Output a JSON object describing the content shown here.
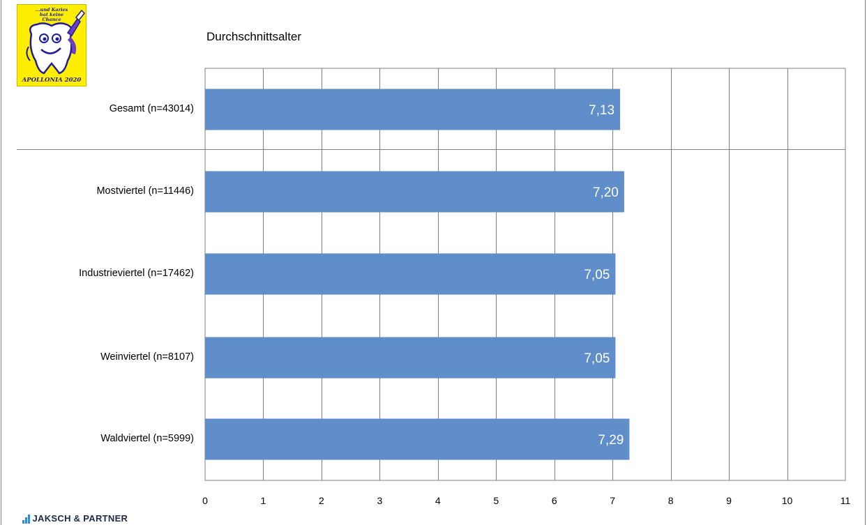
{
  "logo": {
    "top_text": "...und Karies hat keine Chance",
    "bottom_text": "APOLLONIA 2020"
  },
  "brand": {
    "name": "JAKSCH & PARTNER"
  },
  "colors": {
    "bar": "#5f8ecb",
    "grid": "#7f7f7f",
    "value_label": "#ffffff"
  },
  "chart_data": {
    "type": "bar",
    "orientation": "horizontal",
    "title": "Durchschnittsalter",
    "categories": [
      "Gesamt (n=43014)",
      "Mostviertel (n=11446)",
      "Industrieviertel (n=17462)",
      "Weinviertel (n=8107)",
      "Waldviertel (n=5999)"
    ],
    "values": [
      7.13,
      7.2,
      7.05,
      7.05,
      7.29
    ],
    "value_labels": [
      "7,13",
      "7,20",
      "7,05",
      "7,05",
      "7,29"
    ],
    "xlim": [
      0,
      11
    ],
    "ticks": [
      "0",
      "1",
      "2",
      "3",
      "4",
      "5",
      "6",
      "7",
      "8",
      "9",
      "10",
      "11"
    ],
    "grid": true,
    "legend": "none",
    "xlabel": "",
    "ylabel": ""
  }
}
